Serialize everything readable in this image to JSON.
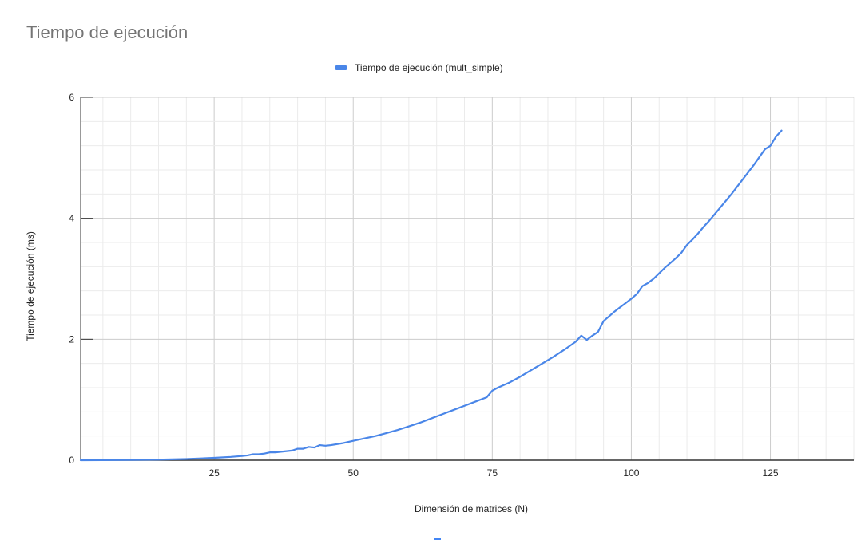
{
  "chart_data": {
    "type": "line",
    "title": "Tiempo de ejecución",
    "xlabel": "Dimensión de matrices (N)",
    "ylabel": "Tiempo de ejecución (ms)",
    "xlim": [
      1,
      140
    ],
    "ylim": [
      0,
      6
    ],
    "x_ticks": [
      25,
      50,
      75,
      100,
      125
    ],
    "y_ticks": [
      0,
      2,
      4,
      6
    ],
    "grid": true,
    "legend_position": "top-center",
    "series": [
      {
        "name": "Tiempo de ejecución (mult_simple)",
        "color": "#4a86e8",
        "points": [
          [
            1,
            0
          ],
          [
            5,
            0.002
          ],
          [
            10,
            0.005
          ],
          [
            15,
            0.01
          ],
          [
            20,
            0.02
          ],
          [
            25,
            0.04
          ],
          [
            28,
            0.055
          ],
          [
            30,
            0.07
          ],
          [
            31,
            0.08
          ],
          [
            32,
            0.1
          ],
          [
            33,
            0.1
          ],
          [
            34,
            0.11
          ],
          [
            35,
            0.13
          ],
          [
            36,
            0.13
          ],
          [
            37,
            0.14
          ],
          [
            38,
            0.15
          ],
          [
            39,
            0.16
          ],
          [
            40,
            0.19
          ],
          [
            41,
            0.19
          ],
          [
            42,
            0.22
          ],
          [
            43,
            0.21
          ],
          [
            44,
            0.25
          ],
          [
            45,
            0.24
          ],
          [
            46,
            0.25
          ],
          [
            48,
            0.28
          ],
          [
            50,
            0.32
          ],
          [
            52,
            0.36
          ],
          [
            54,
            0.4
          ],
          [
            56,
            0.45
          ],
          [
            58,
            0.5
          ],
          [
            60,
            0.56
          ],
          [
            62,
            0.62
          ],
          [
            64,
            0.69
          ],
          [
            66,
            0.76
          ],
          [
            68,
            0.83
          ],
          [
            70,
            0.9
          ],
          [
            72,
            0.97
          ],
          [
            74,
            1.04
          ],
          [
            75,
            1.15
          ],
          [
            76,
            1.2
          ],
          [
            78,
            1.28
          ],
          [
            80,
            1.38
          ],
          [
            82,
            1.49
          ],
          [
            84,
            1.6
          ],
          [
            86,
            1.71
          ],
          [
            88,
            1.83
          ],
          [
            90,
            1.96
          ],
          [
            91,
            2.06
          ],
          [
            92,
            1.99
          ],
          [
            93,
            2.06
          ],
          [
            94,
            2.12
          ],
          [
            95,
            2.3
          ],
          [
            96,
            2.38
          ],
          [
            97,
            2.46
          ],
          [
            98,
            2.53
          ],
          [
            99,
            2.6
          ],
          [
            100,
            2.67
          ],
          [
            101,
            2.75
          ],
          [
            102,
            2.88
          ],
          [
            103,
            2.93
          ],
          [
            104,
            3.0
          ],
          [
            105,
            3.09
          ],
          [
            106,
            3.18
          ],
          [
            107,
            3.26
          ],
          [
            108,
            3.34
          ],
          [
            109,
            3.43
          ],
          [
            110,
            3.56
          ],
          [
            111,
            3.65
          ],
          [
            112,
            3.75
          ],
          [
            113,
            3.86
          ],
          [
            114,
            3.96
          ],
          [
            115,
            4.07
          ],
          [
            116,
            4.18
          ],
          [
            117,
            4.29
          ],
          [
            118,
            4.4
          ],
          [
            119,
            4.52
          ],
          [
            120,
            4.64
          ],
          [
            121,
            4.76
          ],
          [
            122,
            4.88
          ],
          [
            123,
            5.01
          ],
          [
            124,
            5.14
          ],
          [
            125,
            5.2
          ],
          [
            126,
            5.35
          ],
          [
            127,
            5.45
          ]
        ]
      }
    ]
  }
}
